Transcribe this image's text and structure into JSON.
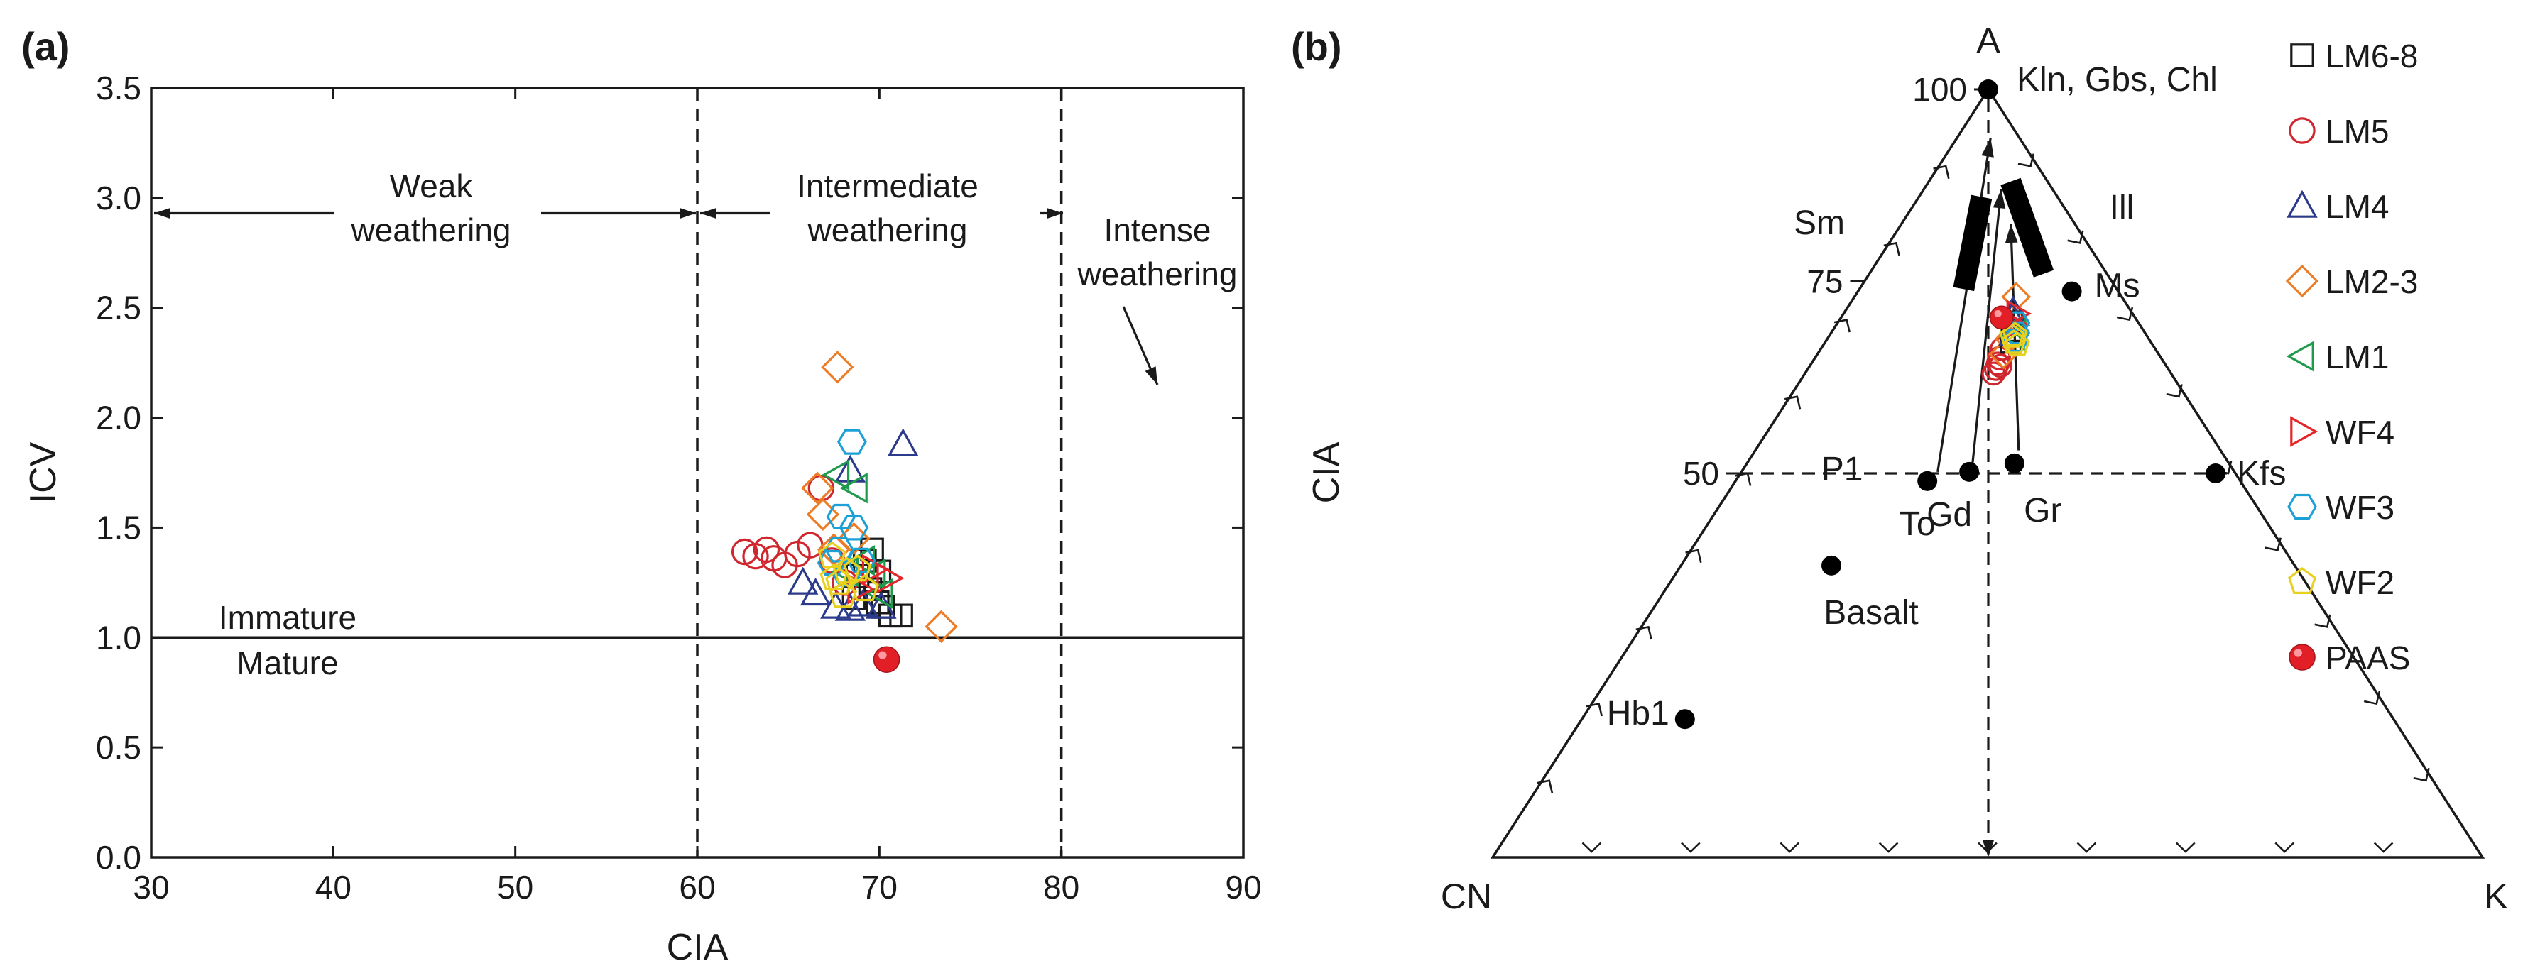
{
  "figure": {
    "panel_a_label": "(a)",
    "panel_b_label": "(b)"
  },
  "chart_data": [
    {
      "type": "scatter",
      "panel": "(a)",
      "xlabel": "CIA",
      "ylabel": "ICV",
      "xlim": [
        30,
        90
      ],
      "ylim": [
        0,
        3.5
      ],
      "xticks": [
        30,
        40,
        50,
        60,
        70,
        80,
        90
      ],
      "yticks": [
        0.0,
        0.5,
        1.0,
        1.5,
        2.0,
        2.5,
        3.0,
        3.5
      ],
      "ytick_labels": [
        "0.0",
        "0.5",
        "1.0",
        "1.5",
        "2.0",
        "2.5",
        "3.0",
        "3.5"
      ],
      "vlines": [
        60,
        80
      ],
      "hline": 1.0,
      "annotations": {
        "weak": [
          "Weak",
          "weathering"
        ],
        "intermediate": [
          "Intermediate",
          "weathering"
        ],
        "intense": [
          "Intense",
          "weathering"
        ],
        "immature": "Immature",
        "mature": "Mature"
      },
      "series": [
        {
          "name": "LM6-8",
          "marker": "square",
          "color": "#1a1a1a",
          "points": [
            [
              69.6,
              1.4
            ],
            [
              69.2,
              1.35
            ],
            [
              70.0,
              1.3
            ],
            [
              68.8,
              1.28
            ],
            [
              69.5,
              1.22
            ],
            [
              68.6,
              1.18
            ],
            [
              70.2,
              1.14
            ],
            [
              70.6,
              1.1
            ],
            [
              71.2,
              1.1
            ],
            [
              69.9,
              1.16
            ]
          ]
        },
        {
          "name": "LM5",
          "marker": "circle",
          "color": "#d0262d",
          "points": [
            [
              62.6,
              1.39
            ],
            [
              63.2,
              1.37
            ],
            [
              63.8,
              1.4
            ],
            [
              64.2,
              1.36
            ],
            [
              64.8,
              1.33
            ],
            [
              65.5,
              1.38
            ],
            [
              66.2,
              1.42
            ],
            [
              66.8,
              1.68
            ],
            [
              67.4,
              1.35
            ],
            [
              68.1,
              1.25
            ]
          ]
        },
        {
          "name": "LM4",
          "marker": "triangle-up",
          "color": "#2b3a8a",
          "points": [
            [
              71.3,
              1.88
            ],
            [
              68.4,
              1.76
            ],
            [
              65.8,
              1.25
            ],
            [
              66.5,
              1.2
            ],
            [
              67.6,
              1.14
            ],
            [
              68.4,
              1.13
            ],
            [
              69.1,
              1.15
            ],
            [
              70.1,
              1.14
            ]
          ]
        },
        {
          "name": "LM2-3",
          "marker": "diamond",
          "color": "#ec7c26",
          "points": [
            [
              67.7,
              2.23
            ],
            [
              73.4,
              1.05
            ],
            [
              66.6,
              1.68
            ],
            [
              66.9,
              1.56
            ],
            [
              67.5,
              1.4
            ],
            [
              68.6,
              1.45
            ]
          ]
        },
        {
          "name": "LM1",
          "marker": "triangle-left",
          "color": "#1f9a4d",
          "points": [
            [
              67.7,
              1.74
            ],
            [
              68.7,
              1.68
            ],
            [
              69.1,
              1.35
            ],
            [
              68.2,
              1.3
            ],
            [
              69.7,
              1.29
            ],
            [
              70.1,
              1.2
            ]
          ]
        },
        {
          "name": "WF4",
          "marker": "triangle-right",
          "color": "#e4262b",
          "points": [
            [
              70.5,
              1.27
            ],
            [
              69.7,
              1.31
            ],
            [
              68.9,
              1.22
            ]
          ]
        },
        {
          "name": "WF3",
          "marker": "hexagon",
          "color": "#1ca1d6",
          "points": [
            [
              68.5,
              1.89
            ],
            [
              67.9,
              1.55
            ],
            [
              68.6,
              1.5
            ],
            [
              67.8,
              1.4
            ],
            [
              69.0,
              1.35
            ],
            [
              67.4,
              1.34
            ],
            [
              68.2,
              1.29
            ]
          ]
        },
        {
          "name": "WF2",
          "marker": "pentagon",
          "color": "#e8d01f",
          "points": [
            [
              67.4,
              1.37
            ],
            [
              68.2,
              1.3
            ],
            [
              67.8,
              1.25
            ],
            [
              68.8,
              1.31
            ],
            [
              69.2,
              1.22
            ],
            [
              68.0,
              1.19
            ],
            [
              67.5,
              1.27
            ]
          ]
        },
        {
          "name": "PAAS",
          "marker": "filled-circle",
          "color": "#e21f26",
          "points": [
            [
              70.4,
              0.9
            ]
          ]
        }
      ]
    },
    {
      "type": "ternary",
      "panel": "(b)",
      "vertices": {
        "top": "A",
        "left": "CN",
        "right": "K"
      },
      "ylabel": "CIA",
      "cia_ticks": [
        50,
        75,
        100
      ],
      "minerals": [
        {
          "label": "Kln, Gbs, Chl",
          "cia": 100,
          "pos": 0.5
        },
        {
          "label": "Ms",
          "cia": 73.7,
          "pos": 0.8215
        },
        {
          "label": "Kfs",
          "cia": 50,
          "pos": 0.96
        },
        {
          "label": "P1",
          "cia": 50,
          "pos": 0.302
        },
        {
          "label": "To",
          "cia": 49,
          "pos": 0.38
        },
        {
          "label": "Gd",
          "cia": 50.2,
          "pos": 0.462
        },
        {
          "label": "Gr",
          "cia": 51.3,
          "pos": 0.555
        },
        {
          "label": "Basalt",
          "cia": 38,
          "pos": 0.245
        },
        {
          "label": "Hb1",
          "cia": 18,
          "pos": 0.127
        }
      ],
      "trends": [
        {
          "from_cia": 50.2,
          "from_pos": 0.398,
          "to_cia": 93.7,
          "to_pos": 0.538
        },
        {
          "from_cia": 50.2,
          "from_pos": 0.467,
          "to_cia": 87,
          "to_pos": 0.601
        },
        {
          "from_cia": 53,
          "from_pos": 0.566,
          "to_cia": 82.5,
          "to_pos": 0.631
        }
      ],
      "field_bars": [
        {
          "label": "Sm",
          "from_cia": 74,
          "from_pos": 0.405,
          "to_cia": 86,
          "to_pos": 0.452
        },
        {
          "label": "Ill",
          "from_cia": 76,
          "from_pos": 0.734,
          "to_cia": 88,
          "to_pos": 0.689
        }
      ],
      "samples_cia_range": [
        62,
        74
      ],
      "legend": [
        {
          "label": "LM6-8",
          "marker": "square",
          "color": "#1a1a1a"
        },
        {
          "label": "LM5",
          "marker": "circle",
          "color": "#d0262d"
        },
        {
          "label": "LM4",
          "marker": "triangle-up",
          "color": "#2b3a8a"
        },
        {
          "label": "LM2-3",
          "marker": "diamond",
          "color": "#ec7c26"
        },
        {
          "label": "LM1",
          "marker": "triangle-left",
          "color": "#1f9a4d"
        },
        {
          "label": "WF4",
          "marker": "triangle-right",
          "color": "#e4262b"
        },
        {
          "label": "WF3",
          "marker": "hexagon",
          "color": "#1ca1d6"
        },
        {
          "label": "WF2",
          "marker": "pentagon",
          "color": "#e8d01f"
        },
        {
          "label": "PAAS",
          "marker": "filled-circle",
          "color": "#e21f26"
        }
      ],
      "sample_points": [
        {
          "series": "LM5",
          "cia": 63.0,
          "pos": 0.515
        },
        {
          "series": "LM5",
          "cia": 63.6,
          "pos": 0.522
        },
        {
          "series": "LM5",
          "cia": 64.3,
          "pos": 0.528
        },
        {
          "series": "LM5",
          "cia": 65.0,
          "pos": 0.532
        },
        {
          "series": "LM5",
          "cia": 64.0,
          "pos": 0.535
        },
        {
          "series": "LM5",
          "cia": 66.2,
          "pos": 0.541
        },
        {
          "series": "LM2-3",
          "cia": 65.5,
          "pos": 0.545
        },
        {
          "series": "LM2-3",
          "cia": 73.0,
          "pos": 0.605
        },
        {
          "series": "LM2-3",
          "cia": 67.5,
          "pos": 0.566
        },
        {
          "series": "LM2-3",
          "cia": 70.2,
          "pos": 0.58
        },
        {
          "series": "LM6-8",
          "cia": 68.5,
          "pos": 0.575
        },
        {
          "series": "LM6-8",
          "cia": 69.8,
          "pos": 0.582
        },
        {
          "series": "LM6-8",
          "cia": 67.0,
          "pos": 0.57
        },
        {
          "series": "LM4",
          "cia": 70.5,
          "pos": 0.583
        },
        {
          "series": "LM4",
          "cia": 71.3,
          "pos": 0.588
        },
        {
          "series": "LM4",
          "cia": 68.0,
          "pos": 0.576
        },
        {
          "series": "LM1",
          "cia": 69.0,
          "pos": 0.59
        },
        {
          "series": "LM1",
          "cia": 67.8,
          "pos": 0.582
        },
        {
          "series": "WF4",
          "cia": 70.8,
          "pos": 0.601
        },
        {
          "series": "WF4",
          "cia": 69.3,
          "pos": 0.592
        },
        {
          "series": "WF3",
          "cia": 68.3,
          "pos": 0.592
        },
        {
          "series": "WF3",
          "cia": 69.6,
          "pos": 0.596
        },
        {
          "series": "WF3",
          "cia": 67.3,
          "pos": 0.585
        },
        {
          "series": "WF2",
          "cia": 67.0,
          "pos": 0.579
        },
        {
          "series": "WF2",
          "cia": 68.0,
          "pos": 0.585
        },
        {
          "series": "WF2",
          "cia": 66.7,
          "pos": 0.589
        },
        {
          "series": "WF2",
          "cia": 67.8,
          "pos": 0.575
        },
        {
          "series": "PAAS",
          "cia": 70.3,
          "pos": 0.546
        }
      ]
    }
  ]
}
